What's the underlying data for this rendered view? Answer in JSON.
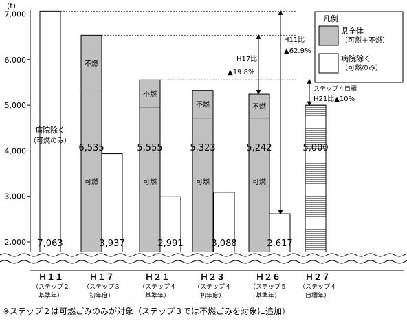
{
  "chart_data": {
    "type": "bar",
    "unit": "(t)",
    "ylim": [
      2000,
      7000
    ],
    "y_ticks": [
      "2,000",
      "3,000",
      "4,000",
      "5,000",
      "6,000",
      "7,000"
    ],
    "categories": [
      {
        "label": "Ｈ１１",
        "sub1": "（ステップ２",
        "sub2": "基準年）"
      },
      {
        "label": "Ｈ１７",
        "sub1": "（ステップ３",
        "sub2": "初年度）"
      },
      {
        "label": "Ｈ２１",
        "sub1": "（ステップ４",
        "sub2": "基準年）"
      },
      {
        "label": "Ｈ２３",
        "sub1": "（ステップ４",
        "sub2": "初年度）"
      },
      {
        "label": "Ｈ２６",
        "sub1": "（ステップ５",
        "sub2": "基準年）"
      },
      {
        "label": "Ｈ２７",
        "sub1": "（ステップ４",
        "sub2": "目標年）"
      }
    ],
    "series": [
      {
        "name": "県全体",
        "values": [
          null,
          6535,
          5555,
          5323,
          5242,
          null
        ]
      },
      {
        "name": "病院除く",
        "values": [
          7063,
          3937,
          2991,
          3088,
          2617,
          null
        ]
      }
    ],
    "target": {
      "value": 5000,
      "label": "5,000"
    },
    "bar_labels": {
      "total": [
        "6,535",
        "5,555",
        "5,323",
        "5,242"
      ],
      "excl": [
        "7,063",
        "3,937",
        "2,991",
        "3,088",
        "2,617"
      ]
    },
    "burnable_boundary": [
      null,
      5310,
      4960,
      4720,
      4720,
      null
    ],
    "segment_labels": {
      "burnable": "可燃",
      "nonburnable": "不燃"
    },
    "h11_bar_text": [
      "病院除く",
      "（可燃のみ）"
    ],
    "legend": {
      "title": "凡例",
      "items": [
        {
          "line1": "県全体",
          "line2": "（可燃＋不燃）",
          "color": "#c0c0c0"
        },
        {
          "line1": "病院除く",
          "line2": "（可燃のみ）",
          "color": "#ffffff"
        }
      ]
    },
    "annotations": {
      "h17_ratio": [
        "H17比",
        "▲19.8%"
      ],
      "h11_ratio": [
        "H11比",
        "▲62.9%"
      ],
      "step4": [
        "ステップ４目標",
        "H21比▲10%"
      ]
    },
    "colors": {
      "total_fill": "#c0c0c0",
      "excl_fill": "#ffffff",
      "target_stripe": "#808080"
    }
  },
  "footnote": "※ステップ２は可燃ごみのみが対象（ステップ３では不燃ごみを対象に追加）"
}
